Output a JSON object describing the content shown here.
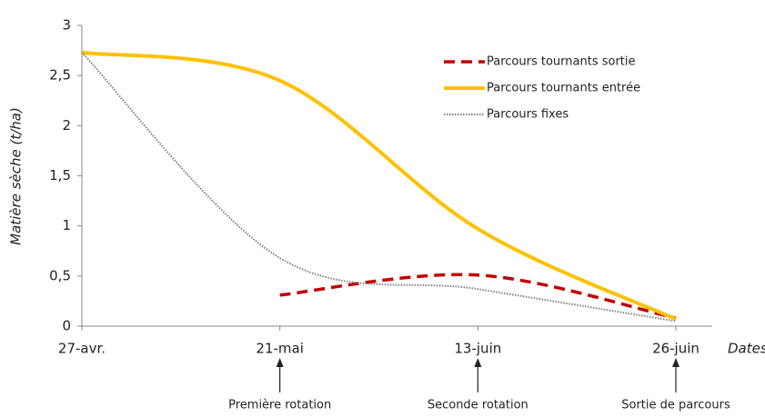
{
  "chart_data": {
    "type": "line",
    "x_label": "Dates",
    "y_label": "Matière sèche (t/ha)",
    "categories": [
      "27-avr.",
      "21-mai",
      "13-juin",
      "26-juin"
    ],
    "series": [
      {
        "name": "Parcours tournants sortie",
        "color": "#c00000",
        "style": "dashed",
        "values": [
          null,
          0.31,
          0.51,
          0.08
        ]
      },
      {
        "name": "Parcours tournants entrée",
        "color": "#ffc000",
        "style": "solid",
        "values": [
          2.73,
          2.45,
          0.97,
          0.07
        ]
      },
      {
        "name": "Parcours fixes",
        "color": "#808080",
        "style": "dotted",
        "values": [
          2.73,
          0.68,
          0.37,
          0.05
        ]
      }
    ],
    "ylim": [
      0,
      3
    ],
    "yticks": [
      0,
      {
        "value": 0.5,
        "label": "0,5"
      },
      1,
      {
        "value": 1.5,
        "label": "1,5"
      },
      2,
      {
        "value": 2.5,
        "label": "2,5"
      },
      3
    ],
    "annotations": [
      "Première rotation",
      "Seconde rotation",
      "Sortie de parcours"
    ],
    "legend": "upper right"
  }
}
